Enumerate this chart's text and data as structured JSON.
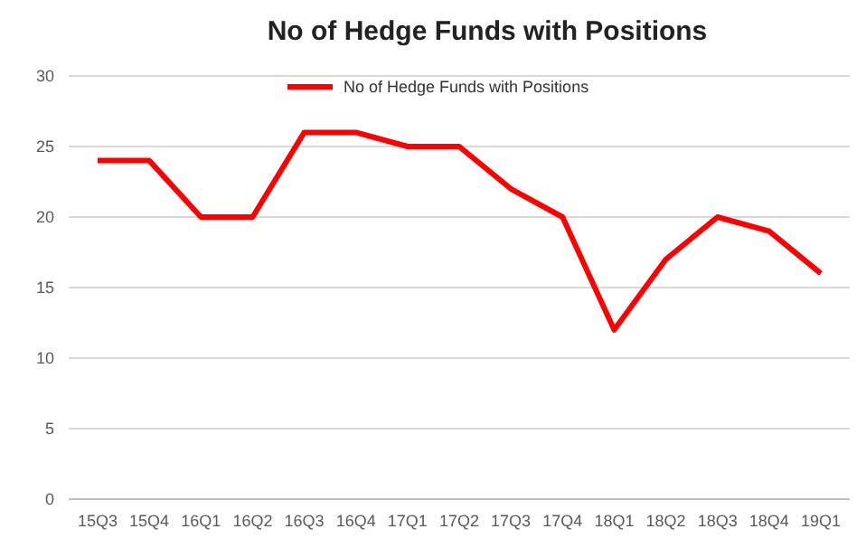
{
  "chart_data": {
    "type": "line",
    "title": "No of Hedge Funds with Positions",
    "categories": [
      "15Q3",
      "15Q4",
      "16Q1",
      "16Q2",
      "16Q3",
      "16Q4",
      "17Q1",
      "17Q2",
      "17Q3",
      "17Q4",
      "18Q1",
      "18Q2",
      "18Q3",
      "18Q4",
      "19Q1"
    ],
    "series": [
      {
        "name": "No of Hedge Funds with Positions",
        "color": "#ff0000",
        "values": [
          24,
          24,
          20,
          20,
          26,
          26,
          25,
          25,
          22,
          20,
          12,
          17,
          20,
          19,
          16
        ]
      }
    ],
    "ylim": [
      0,
      30
    ],
    "yticks": [
      0,
      5,
      10,
      15,
      20,
      25,
      30
    ],
    "grid": "y",
    "legend": "top",
    "marker": "none",
    "line_style": "solid"
  }
}
